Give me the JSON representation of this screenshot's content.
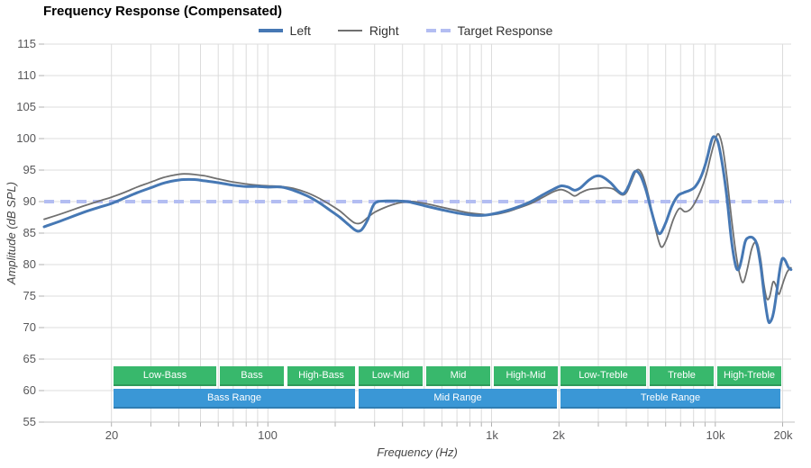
{
  "title": "Frequency Response (Compensated)",
  "legend": {
    "items": [
      {
        "label": "Left",
        "color": "#4678b4",
        "style": "solid-thick"
      },
      {
        "label": "Right",
        "color": "#707070",
        "style": "solid-thin"
      },
      {
        "label": "Target Response",
        "color": "#b3bdf2",
        "style": "dashed"
      }
    ]
  },
  "axes": {
    "x": {
      "title": "Frequency (Hz)",
      "scale": "log",
      "major_ticks": [
        {
          "hz": 20,
          "label": "20"
        },
        {
          "hz": 100,
          "label": "100"
        },
        {
          "hz": 1000,
          "label": "1k"
        },
        {
          "hz": 2000,
          "label": "2k"
        },
        {
          "hz": 10000,
          "label": "10k"
        },
        {
          "hz": 20000,
          "label": "20k"
        }
      ],
      "minor_gridlines_hz": [
        20,
        30,
        40,
        50,
        60,
        70,
        80,
        90,
        100,
        200,
        300,
        400,
        500,
        600,
        700,
        800,
        900,
        1000,
        2000,
        3000,
        4000,
        5000,
        6000,
        7000,
        8000,
        9000,
        10000,
        20000
      ]
    },
    "y": {
      "title": "Amplitude (dB SPL)",
      "tick_values": [
        115,
        110,
        105,
        100,
        95,
        90,
        85,
        80,
        75,
        70,
        65,
        60,
        55
      ],
      "tick_labels": [
        "115",
        "110",
        "105",
        "100",
        "95",
        "90",
        "85",
        "80",
        "75",
        "70",
        "65",
        "60",
        "55"
      ]
    }
  },
  "chart_data": {
    "type": "line",
    "title": "Frequency Response (Compensated)",
    "xlabel": "Frequency (Hz)",
    "ylabel": "Amplitude (dB SPL)",
    "x_scale": "log",
    "xlim_hz": [
      10,
      21840
    ],
    "ylim_db": [
      55,
      115
    ],
    "grid": true,
    "legend_position": "top-center",
    "target": {
      "name": "Target Response",
      "db": 90,
      "color": "#b3bdf2",
      "style": "dashed"
    },
    "series": [
      {
        "name": "Right",
        "color": "#707070",
        "stroke_width": 1.8,
        "points_hz_db": [
          [
            10,
            87.2
          ],
          [
            12,
            88.1
          ],
          [
            15,
            89.3
          ],
          [
            18,
            90.2
          ],
          [
            20,
            90.7
          ],
          [
            23,
            91.5
          ],
          [
            26,
            92.3
          ],
          [
            30,
            93.1
          ],
          [
            34,
            93.8
          ],
          [
            38,
            94.2
          ],
          [
            42,
            94.4
          ],
          [
            47,
            94.3
          ],
          [
            52,
            94.1
          ],
          [
            60,
            93.6
          ],
          [
            70,
            93.1
          ],
          [
            80,
            92.8
          ],
          [
            90,
            92.6
          ],
          [
            100,
            92.5
          ],
          [
            115,
            92.4
          ],
          [
            130,
            92.1
          ],
          [
            150,
            91.4
          ],
          [
            170,
            90.5
          ],
          [
            190,
            89.5
          ],
          [
            210,
            88.5
          ],
          [
            230,
            87.3
          ],
          [
            245,
            86.6
          ],
          [
            260,
            86.6
          ],
          [
            280,
            87.5
          ],
          [
            300,
            88.3
          ],
          [
            330,
            89.0
          ],
          [
            360,
            89.5
          ],
          [
            400,
            89.9
          ],
          [
            450,
            90.0
          ],
          [
            520,
            89.6
          ],
          [
            600,
            89.1
          ],
          [
            700,
            88.6
          ],
          [
            800,
            88.2
          ],
          [
            900,
            88.0
          ],
          [
            1000,
            87.9
          ],
          [
            1150,
            88.3
          ],
          [
            1300,
            88.9
          ],
          [
            1500,
            89.7
          ],
          [
            1700,
            90.7
          ],
          [
            1900,
            91.6
          ],
          [
            2050,
            91.9
          ],
          [
            2200,
            91.5
          ],
          [
            2350,
            90.9
          ],
          [
            2500,
            91.4
          ],
          [
            2700,
            91.9
          ],
          [
            3000,
            92.1
          ],
          [
            3200,
            92.2
          ],
          [
            3500,
            92.0
          ],
          [
            3800,
            91.1
          ],
          [
            4000,
            91.4
          ],
          [
            4200,
            93.0
          ],
          [
            4450,
            95.0
          ],
          [
            4700,
            94.4
          ],
          [
            5000,
            91.3
          ],
          [
            5300,
            87.0
          ],
          [
            5600,
            83.6
          ],
          [
            5800,
            82.8
          ],
          [
            6100,
            84.3
          ],
          [
            6500,
            87.2
          ],
          [
            6900,
            88.9
          ],
          [
            7300,
            88.4
          ],
          [
            7700,
            88.7
          ],
          [
            8100,
            89.8
          ],
          [
            8600,
            91.7
          ],
          [
            9100,
            94.2
          ],
          [
            9600,
            97.6
          ],
          [
            10100,
            100.3
          ],
          [
            10400,
            100.6
          ],
          [
            10800,
            98.5
          ],
          [
            11300,
            93.5
          ],
          [
            11800,
            87.5
          ],
          [
            12400,
            81.5
          ],
          [
            13000,
            77.8
          ],
          [
            13400,
            77.3
          ],
          [
            13900,
            79.3
          ],
          [
            14500,
            82.3
          ],
          [
            15000,
            83.5
          ],
          [
            15500,
            83.1
          ],
          [
            16000,
            80.5
          ],
          [
            16500,
            76.8
          ],
          [
            17000,
            74.6
          ],
          [
            17500,
            74.9
          ],
          [
            18100,
            77.2
          ],
          [
            18600,
            76.8
          ],
          [
            19200,
            75.3
          ],
          [
            19700,
            76.2
          ],
          [
            20300,
            77.6
          ],
          [
            21000,
            78.9
          ],
          [
            21800,
            79.5
          ]
        ]
      },
      {
        "name": "Left",
        "color": "#4678b4",
        "stroke_width": 3,
        "points_hz_db": [
          [
            10,
            86.0
          ],
          [
            12,
            87.0
          ],
          [
            15,
            88.3
          ],
          [
            18,
            89.2
          ],
          [
            20,
            89.7
          ],
          [
            23,
            90.6
          ],
          [
            26,
            91.4
          ],
          [
            30,
            92.2
          ],
          [
            34,
            92.9
          ],
          [
            38,
            93.3
          ],
          [
            42,
            93.5
          ],
          [
            47,
            93.5
          ],
          [
            52,
            93.3
          ],
          [
            60,
            93.0
          ],
          [
            70,
            92.6
          ],
          [
            80,
            92.4
          ],
          [
            90,
            92.4
          ],
          [
            100,
            92.3
          ],
          [
            115,
            92.3
          ],
          [
            130,
            91.8
          ],
          [
            150,
            90.9
          ],
          [
            170,
            89.8
          ],
          [
            190,
            88.6
          ],
          [
            210,
            87.5
          ],
          [
            230,
            86.3
          ],
          [
            245,
            85.5
          ],
          [
            255,
            85.3
          ],
          [
            265,
            85.7
          ],
          [
            280,
            87.2
          ],
          [
            295,
            89.3
          ],
          [
            310,
            90.0
          ],
          [
            340,
            90.1
          ],
          [
            380,
            90.1
          ],
          [
            420,
            90.0
          ],
          [
            470,
            89.6
          ],
          [
            520,
            89.2
          ],
          [
            600,
            88.7
          ],
          [
            700,
            88.2
          ],
          [
            800,
            87.9
          ],
          [
            900,
            87.8
          ],
          [
            1000,
            88.0
          ],
          [
            1150,
            88.5
          ],
          [
            1300,
            89.1
          ],
          [
            1500,
            90.0
          ],
          [
            1700,
            91.1
          ],
          [
            1900,
            92.0
          ],
          [
            2050,
            92.5
          ],
          [
            2200,
            92.3
          ],
          [
            2350,
            91.8
          ],
          [
            2500,
            92.2
          ],
          [
            2700,
            93.3
          ],
          [
            2900,
            94.0
          ],
          [
            3100,
            94.0
          ],
          [
            3400,
            93.0
          ],
          [
            3700,
            91.6
          ],
          [
            3900,
            91.3
          ],
          [
            4100,
            92.5
          ],
          [
            4350,
            94.7
          ],
          [
            4600,
            94.3
          ],
          [
            4900,
            91.8
          ],
          [
            5200,
            88.3
          ],
          [
            5500,
            85.4
          ],
          [
            5700,
            85.0
          ],
          [
            6000,
            86.6
          ],
          [
            6400,
            89.3
          ],
          [
            6800,
            90.9
          ],
          [
            7200,
            91.4
          ],
          [
            7700,
            91.8
          ],
          [
            8100,
            92.3
          ],
          [
            8600,
            93.8
          ],
          [
            9100,
            96.3
          ],
          [
            9600,
            99.6
          ],
          [
            9900,
            100.3
          ],
          [
            10300,
            99.3
          ],
          [
            10800,
            95.5
          ],
          [
            11300,
            90.3
          ],
          [
            11800,
            84.0
          ],
          [
            12300,
            80.0
          ],
          [
            12700,
            79.2
          ],
          [
            13100,
            80.8
          ],
          [
            13600,
            83.6
          ],
          [
            14100,
            84.3
          ],
          [
            14800,
            84.2
          ],
          [
            15400,
            83.0
          ],
          [
            16000,
            79.5
          ],
          [
            16600,
            74.8
          ],
          [
            17200,
            71.3
          ],
          [
            17600,
            70.9
          ],
          [
            18200,
            72.3
          ],
          [
            18800,
            75.5
          ],
          [
            19400,
            79.0
          ],
          [
            19900,
            80.9
          ],
          [
            20500,
            80.7
          ],
          [
            21200,
            79.6
          ],
          [
            21800,
            79.2
          ]
        ]
      }
    ]
  },
  "bands": {
    "sub_color": "#38b86c",
    "range_color": "#3a97d6",
    "text_color": "#ffffff",
    "sub": [
      {
        "label": "Low-Bass",
        "from_hz": 20,
        "to_hz": 60
      },
      {
        "label": "Bass",
        "from_hz": 60,
        "to_hz": 120
      },
      {
        "label": "High-Bass",
        "from_hz": 120,
        "to_hz": 250
      },
      {
        "label": "Low-Mid",
        "from_hz": 250,
        "to_hz": 500
      },
      {
        "label": "Mid",
        "from_hz": 500,
        "to_hz": 1000
      },
      {
        "label": "High-Mid",
        "from_hz": 1000,
        "to_hz": 2000
      },
      {
        "label": "Low-Treble",
        "from_hz": 2000,
        "to_hz": 5000
      },
      {
        "label": "Treble",
        "from_hz": 5000,
        "to_hz": 10000
      },
      {
        "label": "High-Treble",
        "from_hz": 10000,
        "to_hz": 20000
      }
    ],
    "ranges": [
      {
        "label": "Bass Range",
        "from_hz": 20,
        "to_hz": 250
      },
      {
        "label": "Mid Range",
        "from_hz": 250,
        "to_hz": 2000
      },
      {
        "label": "Treble Range",
        "from_hz": 2000,
        "to_hz": 20000
      }
    ]
  },
  "colors": {
    "grid": "#dcdcdc",
    "axis_line": "#c2c2c2",
    "tick_mark": "#b0b0b0",
    "tick_text": "#58585a",
    "axis_title_text": "#454545",
    "title_text": "#000000",
    "legend_text": "#333333"
  }
}
